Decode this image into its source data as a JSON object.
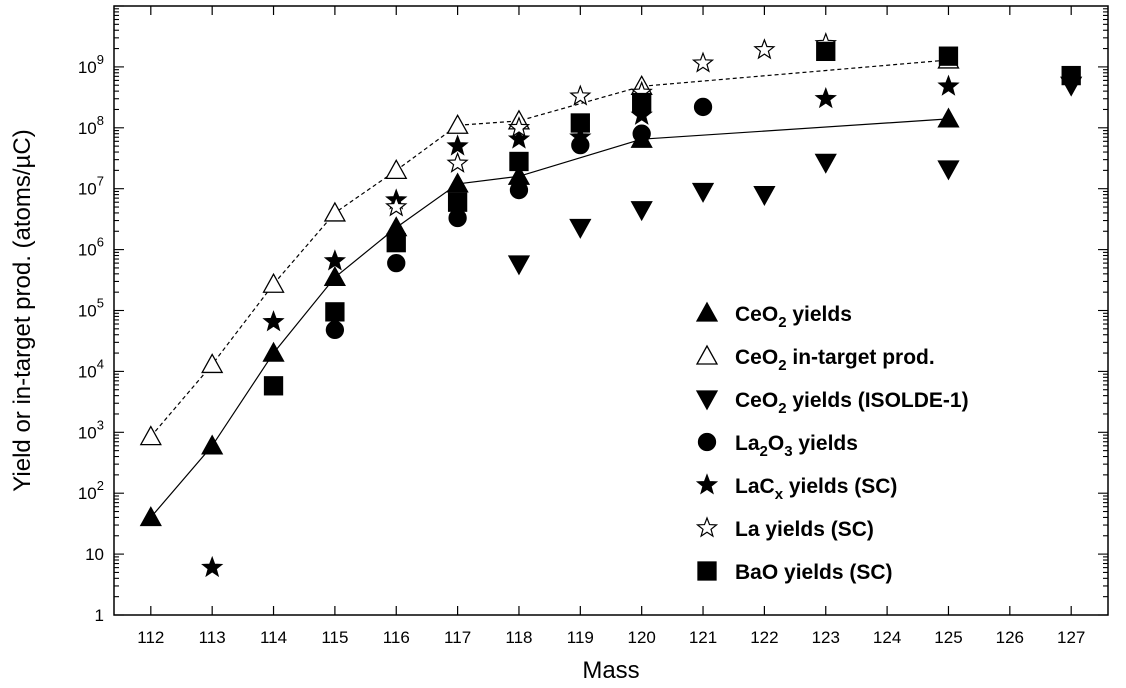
{
  "chart_data": {
    "type": "scatter",
    "xlabel": "Mass",
    "ylabel": "Yield or in-target prod. (atoms/µC)",
    "x_ticks": [
      112,
      113,
      114,
      115,
      116,
      117,
      118,
      119,
      120,
      121,
      122,
      123,
      124,
      125,
      126,
      127
    ],
    "x_range": [
      111.4,
      127.6
    ],
    "y_scale": "log",
    "y_range": [
      1,
      10000000000
    ],
    "y_ticks": [
      {
        "value": 1,
        "base": "1",
        "exp": ""
      },
      {
        "value": 10,
        "base": "10",
        "exp": ""
      },
      {
        "value": 100,
        "base": "10",
        "exp": "2"
      },
      {
        "value": 1000,
        "base": "10",
        "exp": "3"
      },
      {
        "value": 10000,
        "base": "10",
        "exp": "4"
      },
      {
        "value": 100000,
        "base": "10",
        "exp": "5"
      },
      {
        "value": 1000000,
        "base": "10",
        "exp": "6"
      },
      {
        "value": 10000000,
        "base": "10",
        "exp": "7"
      },
      {
        "value": 100000000,
        "base": "10",
        "exp": "8"
      },
      {
        "value": 1000000000,
        "base": "10",
        "exp": "9"
      }
    ],
    "grid": false,
    "legend_position": "bottom-right",
    "series": [
      {
        "legend": [
          {
            "t": "CeO"
          },
          {
            "t": "2",
            "sub": true
          },
          {
            "t": " yields"
          }
        ],
        "marker": "triangle-up-filled",
        "line": "solid",
        "points": [
          [
            112,
            40
          ],
          [
            113,
            600
          ],
          [
            114,
            20000
          ],
          [
            115,
            350000
          ],
          [
            116,
            2300000
          ],
          [
            117,
            12000000
          ],
          [
            118,
            16000000
          ],
          [
            120,
            65000000
          ],
          [
            125,
            140000000
          ]
        ]
      },
      {
        "legend": [
          {
            "t": "CeO"
          },
          {
            "t": "2",
            "sub": true
          },
          {
            "t": " in-target prod."
          }
        ],
        "marker": "triangle-up-open",
        "line": "dashed",
        "points": [
          [
            112,
            850
          ],
          [
            113,
            13000
          ],
          [
            114,
            270000
          ],
          [
            115,
            4000000
          ],
          [
            116,
            20000000
          ],
          [
            117,
            110000000
          ],
          [
            118,
            130000000
          ],
          [
            120,
            480000000
          ],
          [
            125,
            1300000000
          ]
        ]
      },
      {
        "legend": [
          {
            "t": "CeO"
          },
          {
            "t": "2",
            "sub": true
          },
          {
            "t": " yields (ISOLDE-1)"
          }
        ],
        "marker": "triangle-down-filled",
        "line": "none",
        "points": [
          [
            118,
            580000
          ],
          [
            119,
            2300000
          ],
          [
            120,
            4500000
          ],
          [
            121,
            9000000
          ],
          [
            122,
            8000000
          ],
          [
            123,
            27000000
          ],
          [
            125,
            21000000
          ],
          [
            127,
            500000000
          ]
        ]
      },
      {
        "legend": [
          {
            "t": "La"
          },
          {
            "t": "2",
            "sub": true
          },
          {
            "t": "O"
          },
          {
            "t": "3",
            "sub": true
          },
          {
            "t": " yields"
          }
        ],
        "marker": "circle-filled",
        "line": "none",
        "points": [
          [
            115,
            48000
          ],
          [
            116,
            600000
          ],
          [
            117,
            3300000
          ],
          [
            118,
            9500000
          ],
          [
            119,
            52000000
          ],
          [
            120,
            80000000
          ],
          [
            121,
            220000000
          ]
        ]
      },
      {
        "legend": [
          {
            "t": "LaC"
          },
          {
            "t": "x",
            "sub": true
          },
          {
            "t": " yields (SC)"
          }
        ],
        "marker": "star-filled",
        "line": "none",
        "points": [
          [
            113,
            6
          ],
          [
            114,
            65000
          ],
          [
            115,
            650000
          ],
          [
            116,
            6500000
          ],
          [
            117,
            50000000
          ],
          [
            118,
            65000000
          ],
          [
            119,
            70000000
          ],
          [
            120,
            160000000
          ],
          [
            123,
            300000000
          ],
          [
            125,
            480000000
          ]
        ]
      },
      {
        "legend": [
          {
            "t": "La yields (SC)"
          }
        ],
        "marker": "star-open",
        "line": "none",
        "points": [
          [
            116,
            5000000
          ],
          [
            117,
            26000000
          ],
          [
            118,
            100000000
          ],
          [
            119,
            330000000
          ],
          [
            120,
            380000000
          ],
          [
            121,
            1150000000
          ],
          [
            122,
            1900000000
          ],
          [
            123,
            2400000000
          ]
        ]
      },
      {
        "legend": [
          {
            "t": "BaO yields (SC)"
          }
        ],
        "marker": "square-filled",
        "line": "none",
        "points": [
          [
            114,
            5800
          ],
          [
            115,
            95000
          ],
          [
            116,
            1300000
          ],
          [
            117,
            6000000
          ],
          [
            118,
            28000000
          ],
          [
            119,
            120000000
          ],
          [
            120,
            260000000
          ],
          [
            123,
            1800000000
          ],
          [
            125,
            1500000000
          ],
          [
            127,
            720000000
          ]
        ]
      }
    ]
  }
}
